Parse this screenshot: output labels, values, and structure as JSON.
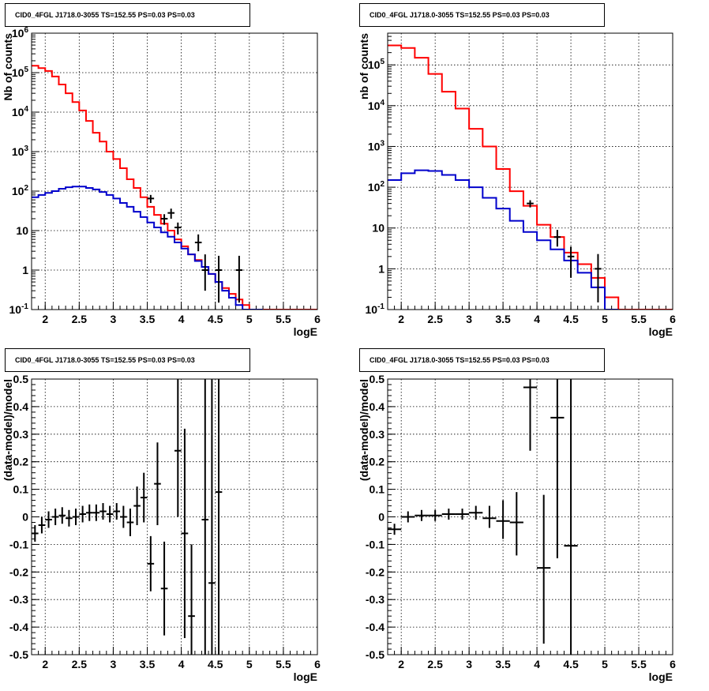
{
  "chart_data": [
    {
      "type": "line",
      "panel": "top-left",
      "title": "CID0_4FGL J1718.0-3055 TS=152.55 PS=0.03 PS=0.03",
      "xlabel": "logE",
      "ylabel": "Nb of counts",
      "xlim": [
        1.8,
        6.0
      ],
      "ylim": [
        0.1,
        1000000
      ],
      "yscale": "log",
      "grid": true,
      "xticks": [
        "2",
        "2.5",
        "3",
        "3.5",
        "4",
        "4.5",
        "5",
        "5.5",
        "6"
      ],
      "yticks": [
        "10^-1",
        "1",
        "10",
        "10^2",
        "10^3",
        "10^4",
        "10^5",
        "10^6"
      ],
      "series": [
        {
          "color": "#ff0000",
          "style": "step",
          "binwidth": 0.1,
          "x": [
            1.8,
            1.9,
            2.0,
            2.1,
            2.2,
            2.3,
            2.4,
            2.5,
            2.6,
            2.7,
            2.8,
            2.9,
            3.0,
            3.1,
            3.2,
            3.3,
            3.4,
            3.5,
            3.6,
            3.7,
            3.8,
            3.9,
            4.0,
            4.1,
            4.2,
            4.3,
            4.4,
            4.5,
            4.6,
            4.7,
            4.8,
            4.9,
            5.0,
            5.1,
            5.2,
            5.3,
            5.4,
            5.5,
            5.6,
            5.7,
            5.8,
            5.9
          ],
          "y": [
            150000,
            130000,
            110000,
            80000,
            50000,
            30000,
            18000,
            11000,
            6000,
            3000,
            1800,
            1000,
            650,
            380,
            200,
            120,
            70,
            40,
            25,
            15,
            10,
            6,
            4,
            2.5,
            1.8,
            1.2,
            0.8,
            0.5,
            0.35,
            0.25,
            0.18,
            0.13,
            0.1,
            0.1,
            0.1,
            0.1,
            0.1,
            0.1,
            0.1,
            0.1,
            0.1,
            0.1
          ]
        },
        {
          "color": "#0000cc",
          "style": "step",
          "binwidth": 0.1,
          "x": [
            1.8,
            1.9,
            2.0,
            2.1,
            2.2,
            2.3,
            2.4,
            2.5,
            2.6,
            2.7,
            2.8,
            2.9,
            3.0,
            3.1,
            3.2,
            3.3,
            3.4,
            3.5,
            3.6,
            3.7,
            3.8,
            3.9,
            4.0,
            4.1,
            4.2,
            4.3,
            4.4,
            4.5,
            4.6,
            4.7,
            4.8,
            4.9,
            5.0,
            5.1
          ],
          "y": [
            70,
            80,
            90,
            100,
            115,
            125,
            130,
            130,
            120,
            110,
            95,
            80,
            65,
            50,
            40,
            30,
            22,
            16,
            12,
            9,
            7,
            5,
            3.5,
            2.5,
            1.7,
            1.2,
            0.8,
            0.5,
            0.3,
            0.2,
            0.13,
            0.1,
            0.1,
            0.1
          ]
        },
        {
          "color": "#000000",
          "style": "errorbar",
          "x": [
            3.55,
            3.75,
            3.85,
            3.95,
            4.25,
            4.35,
            4.55,
            4.85
          ],
          "y": [
            65,
            20,
            28,
            12,
            5,
            1,
            1,
            1
          ],
          "ylo": [
            50,
            14,
            20,
            8,
            3,
            0.3,
            0.15,
            0.15
          ],
          "yhi": [
            80,
            26,
            36,
            16,
            8,
            2.5,
            2.3,
            2.3
          ]
        }
      ]
    },
    {
      "type": "line",
      "panel": "top-right",
      "title": "CID0_4FGL J1718.0-3055 TS=152.55 PS=0.03 PS=0.03",
      "xlabel": "logE",
      "ylabel": "nb of counts",
      "xlim": [
        1.8,
        6.0
      ],
      "ylim": [
        0.1,
        600000
      ],
      "yscale": "log",
      "grid": true,
      "xticks": [
        "2",
        "2.5",
        "3",
        "3.5",
        "4",
        "4.5",
        "5",
        "5.5",
        "6"
      ],
      "yticks": [
        "10^-1",
        "1",
        "10",
        "10^2",
        "10^3",
        "10^4",
        "10^5"
      ],
      "series": [
        {
          "color": "#ff0000",
          "style": "step",
          "binwidth": 0.2,
          "x": [
            1.8,
            2.0,
            2.2,
            2.4,
            2.6,
            2.8,
            3.0,
            3.2,
            3.4,
            3.6,
            3.8,
            4.0,
            4.2,
            4.4,
            4.6,
            4.8,
            5.0,
            5.2,
            5.4,
            5.6,
            5.8
          ],
          "y": [
            300000,
            260000,
            150000,
            60000,
            22000,
            8500,
            2700,
            1000,
            280,
            80,
            35,
            12,
            6,
            2.5,
            1.3,
            0.6,
            0.2,
            0.1,
            0.1,
            0.1,
            0.1
          ]
        },
        {
          "color": "#0000cc",
          "style": "step",
          "binwidth": 0.2,
          "x": [
            1.8,
            2.0,
            2.2,
            2.4,
            2.6,
            2.8,
            3.0,
            3.2,
            3.4,
            3.6,
            3.8,
            4.0,
            4.2,
            4.4,
            4.6,
            4.8,
            5.0
          ],
          "y": [
            150,
            220,
            260,
            250,
            200,
            150,
            100,
            55,
            30,
            15,
            8,
            5,
            3,
            1.6,
            0.8,
            0.35,
            0.1
          ]
        },
        {
          "color": "#000000",
          "style": "errorbar",
          "x": [
            3.9,
            4.3,
            4.5,
            4.9
          ],
          "y": [
            40,
            6,
            2,
            1
          ],
          "ylo": [
            32,
            3.5,
            0.6,
            0.15
          ],
          "yhi": [
            48,
            9,
            3.5,
            2.3
          ]
        }
      ]
    },
    {
      "type": "scatter",
      "panel": "bottom-left",
      "title": "CID0_4FGL J1718.0-3055 TS=152.55 PS=0.03 PS=0.03",
      "xlabel": "logE",
      "ylabel": "(data-model)/model",
      "xlim": [
        1.8,
        6.0
      ],
      "ylim": [
        -0.5,
        0.5
      ],
      "grid": true,
      "xticks": [
        "2",
        "2.5",
        "3",
        "3.5",
        "4",
        "4.5",
        "5",
        "5.5",
        "6"
      ],
      "yticks": [
        "-0.5",
        "-0.4",
        "-0.3",
        "-0.2",
        "-0.1",
        "0",
        "0.1",
        "0.2",
        "0.3",
        "0.4",
        "0.5"
      ],
      "series": [
        {
          "color": "#000000",
          "style": "errorbar",
          "xerr": 0.05,
          "x": [
            1.85,
            1.95,
            2.05,
            2.15,
            2.25,
            2.35,
            2.45,
            2.55,
            2.65,
            2.75,
            2.85,
            2.95,
            3.05,
            3.15,
            3.25,
            3.35,
            3.45,
            3.55,
            3.65,
            3.75,
            3.95,
            4.05,
            4.15,
            4.35,
            4.45,
            4.55
          ],
          "y": [
            -0.06,
            -0.03,
            -0.01,
            0.0,
            0.005,
            -0.005,
            0.0,
            0.01,
            0.015,
            0.015,
            0.02,
            0.01,
            0.02,
            0.0,
            -0.02,
            0.04,
            0.07,
            -0.17,
            0.12,
            -0.26,
            0.24,
            -0.06,
            -0.36,
            -0.01,
            -0.24,
            0.09
          ],
          "ylo": [
            -0.09,
            -0.06,
            -0.04,
            -0.03,
            -0.025,
            -0.035,
            -0.03,
            -0.02,
            -0.015,
            -0.015,
            -0.01,
            -0.02,
            -0.01,
            -0.04,
            -0.07,
            -0.03,
            -0.02,
            -0.27,
            -0.03,
            -0.43,
            0.0,
            -0.44,
            -0.5,
            -0.5,
            -0.5,
            -0.5
          ],
          "yhi": [
            -0.03,
            0.0,
            0.02,
            0.03,
            0.035,
            0.025,
            0.03,
            0.04,
            0.045,
            0.045,
            0.05,
            0.04,
            0.05,
            0.04,
            0.03,
            0.11,
            0.16,
            -0.07,
            0.27,
            -0.09,
            0.5,
            0.32,
            -0.1,
            0.5,
            0.5,
            0.5
          ]
        }
      ]
    },
    {
      "type": "scatter",
      "panel": "bottom-right",
      "title": "CID0_4FGL J1718.0-3055 TS=152.55 PS=0.03 PS=0.03",
      "xlabel": "logE",
      "ylabel": "(data-model)/model",
      "xlim": [
        1.8,
        6.0
      ],
      "ylim": [
        -0.5,
        0.5
      ],
      "grid": true,
      "xticks": [
        "2",
        "2.5",
        "3",
        "3.5",
        "4",
        "4.5",
        "5",
        "5.5",
        "6"
      ],
      "yticks": [
        "-0.5",
        "-0.4",
        "-0.3",
        "-0.2",
        "-0.1",
        "0",
        "0.1",
        "0.2",
        "0.3",
        "0.4",
        "0.5"
      ],
      "series": [
        {
          "color": "#000000",
          "style": "errorbar",
          "xerr": 0.1,
          "x": [
            1.9,
            2.1,
            2.3,
            2.5,
            2.7,
            2.9,
            3.1,
            3.3,
            3.5,
            3.7,
            3.9,
            4.1,
            4.3,
            4.5
          ],
          "y": [
            -0.045,
            0.0,
            0.005,
            0.005,
            0.01,
            0.01,
            0.015,
            -0.005,
            -0.015,
            -0.02,
            0.47,
            -0.185,
            0.36,
            -0.105
          ],
          "ylo": [
            -0.065,
            -0.02,
            -0.015,
            -0.015,
            -0.01,
            -0.01,
            -0.01,
            -0.04,
            -0.08,
            -0.14,
            0.24,
            -0.46,
            -0.15,
            -0.5
          ],
          "yhi": [
            -0.025,
            0.02,
            0.025,
            0.025,
            0.03,
            0.03,
            0.04,
            0.04,
            0.06,
            0.09,
            0.5,
            0.08,
            0.5,
            0.5
          ]
        }
      ]
    }
  ]
}
